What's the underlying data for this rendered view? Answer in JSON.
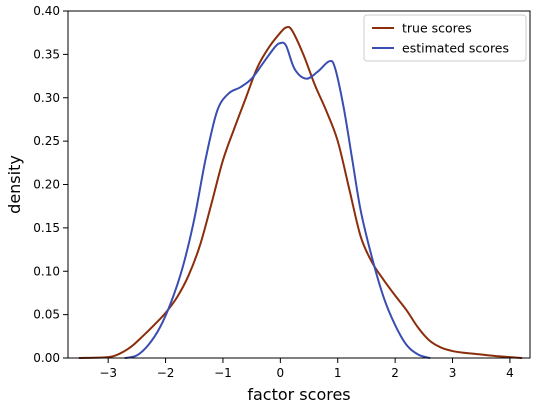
{
  "chart_data": {
    "type": "line",
    "xlabel": "factor scores",
    "ylabel": "density",
    "xlim": [
      -3.7,
      4.35
    ],
    "ylim": [
      0,
      0.4
    ],
    "x_ticks": [
      -3,
      -2,
      -1,
      0,
      1,
      2,
      3,
      4
    ],
    "y_ticks": [
      0.0,
      0.05,
      0.1,
      0.15,
      0.2,
      0.25,
      0.3,
      0.35,
      0.4
    ],
    "legend": {
      "placement": "top-right"
    },
    "grid": false,
    "series": [
      {
        "name": "true scores",
        "color": "#8B2E0B",
        "points": [
          [
            -3.5,
            0.0
          ],
          [
            -3.0,
            0.001
          ],
          [
            -2.8,
            0.005
          ],
          [
            -2.6,
            0.013
          ],
          [
            -2.4,
            0.025
          ],
          [
            -2.2,
            0.038
          ],
          [
            -2.0,
            0.052
          ],
          [
            -1.8,
            0.07
          ],
          [
            -1.6,
            0.095
          ],
          [
            -1.4,
            0.13
          ],
          [
            -1.2,
            0.178
          ],
          [
            -1.0,
            0.228
          ],
          [
            -0.8,
            0.265
          ],
          [
            -0.6,
            0.3
          ],
          [
            -0.4,
            0.335
          ],
          [
            -0.2,
            0.358
          ],
          [
            0.0,
            0.375
          ],
          [
            0.1,
            0.381
          ],
          [
            0.2,
            0.378
          ],
          [
            0.4,
            0.35
          ],
          [
            0.6,
            0.315
          ],
          [
            0.8,
            0.285
          ],
          [
            1.0,
            0.25
          ],
          [
            1.2,
            0.195
          ],
          [
            1.4,
            0.14
          ],
          [
            1.6,
            0.11
          ],
          [
            1.8,
            0.09
          ],
          [
            2.0,
            0.072
          ],
          [
            2.2,
            0.055
          ],
          [
            2.4,
            0.035
          ],
          [
            2.6,
            0.02
          ],
          [
            2.8,
            0.012
          ],
          [
            3.0,
            0.008
          ],
          [
            3.2,
            0.006
          ],
          [
            3.5,
            0.004
          ],
          [
            3.8,
            0.002
          ],
          [
            4.2,
            0.0
          ]
        ]
      },
      {
        "name": "estimated scores",
        "color": "#3A4DB0",
        "points": [
          [
            -2.7,
            0.0
          ],
          [
            -2.5,
            0.003
          ],
          [
            -2.3,
            0.015
          ],
          [
            -2.1,
            0.035
          ],
          [
            -1.9,
            0.065
          ],
          [
            -1.7,
            0.105
          ],
          [
            -1.5,
            0.16
          ],
          [
            -1.3,
            0.23
          ],
          [
            -1.1,
            0.285
          ],
          [
            -0.9,
            0.305
          ],
          [
            -0.7,
            0.312
          ],
          [
            -0.5,
            0.322
          ],
          [
            -0.3,
            0.34
          ],
          [
            -0.1,
            0.358
          ],
          [
            0.0,
            0.363
          ],
          [
            0.1,
            0.36
          ],
          [
            0.25,
            0.333
          ],
          [
            0.45,
            0.322
          ],
          [
            0.65,
            0.33
          ],
          [
            0.85,
            0.342
          ],
          [
            0.95,
            0.335
          ],
          [
            1.1,
            0.29
          ],
          [
            1.25,
            0.23
          ],
          [
            1.4,
            0.17
          ],
          [
            1.6,
            0.115
          ],
          [
            1.8,
            0.07
          ],
          [
            2.0,
            0.038
          ],
          [
            2.2,
            0.015
          ],
          [
            2.4,
            0.004
          ],
          [
            2.6,
            0.0
          ]
        ]
      }
    ]
  }
}
